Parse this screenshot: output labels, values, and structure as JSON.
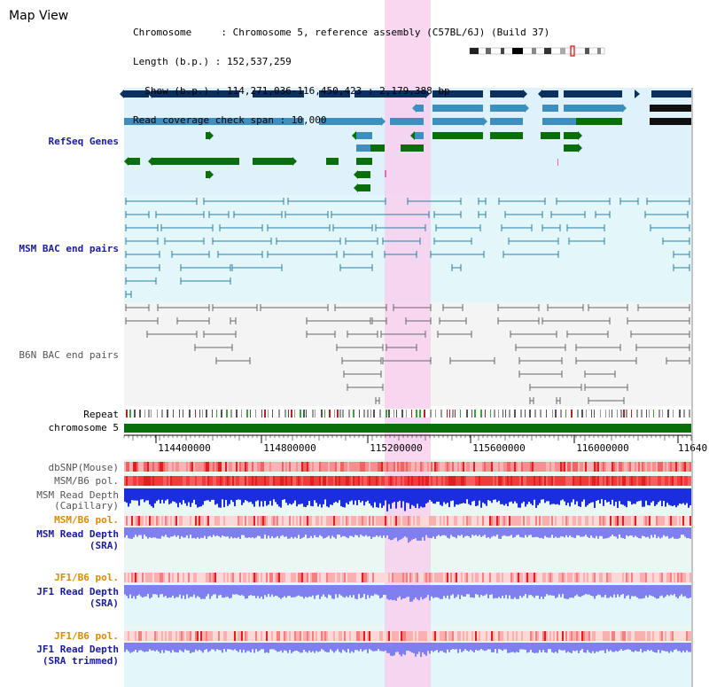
{
  "view_title": "Map View",
  "info": {
    "chromosome_line": "Chromosome     : Chromosome 5, reference assembly (C57BL/6J) (Build 37)",
    "length_line": "Length (b.p.) : 152,537,259",
    "show_line": "  Show (b.p.) : 114,271,036-116,450,423 : 2,179,388 bp",
    "coverage_line": "Read coverage check span : 10,000"
  },
  "tracks": {
    "refseq_label": "RefSeq Genes",
    "msm_bac_label": "MSM BAC end pairs",
    "b6n_bac_label": "B6N BAC end pairs",
    "repeat_label": "Repeat",
    "chromosome_label": "chromosome 5",
    "dbsnp_label": "dbSNP(Mouse)",
    "msm_b6_pol_1_label": "MSM/B6 pol.",
    "msm_depth_cap_label_1": "MSM Read Depth",
    "msm_depth_cap_label_2": "(Capillary)",
    "msm_b6_pol_2_label": "MSM/B6 pol.",
    "msm_depth_sra_label_1": "MSM Read Depth",
    "msm_depth_sra_label_2": "(SRA)",
    "jf1_b6_pol_1_label": "JF1/B6 pol.",
    "jf1_depth_sra_label_1": "JF1 Read Depth",
    "jf1_depth_sra_label_2": "(SRA)",
    "jf1_b6_pol_2_label": "JF1/B6 pol.",
    "jf1_depth_trim_label_1": "JF1 Read Depth",
    "jf1_depth_trim_label_2": "(SRA trimmed)"
  },
  "axis": {
    "ticks": [
      "114400000",
      "114800000",
      "115200000",
      "115600000",
      "116000000",
      "11640"
    ]
  },
  "colors": {
    "gene_dark": "#0b2f5e",
    "gene_mid": "#3f8fbe",
    "gene_green": "#0a6e0a",
    "bac_msm": "#2a7ea6",
    "bac_b6n": "#666666",
    "highlight": "#f8d0ee",
    "refseq_bg": "#dff1fb",
    "msm_bg": "#e3f6f9",
    "b6n_bg": "#f4f4f4",
    "depth_blue": "#1a2ee0",
    "depth_light": "#7f7ff0",
    "pol_red": "#ea4444",
    "chrom_green": "#0a6e0a"
  }
}
